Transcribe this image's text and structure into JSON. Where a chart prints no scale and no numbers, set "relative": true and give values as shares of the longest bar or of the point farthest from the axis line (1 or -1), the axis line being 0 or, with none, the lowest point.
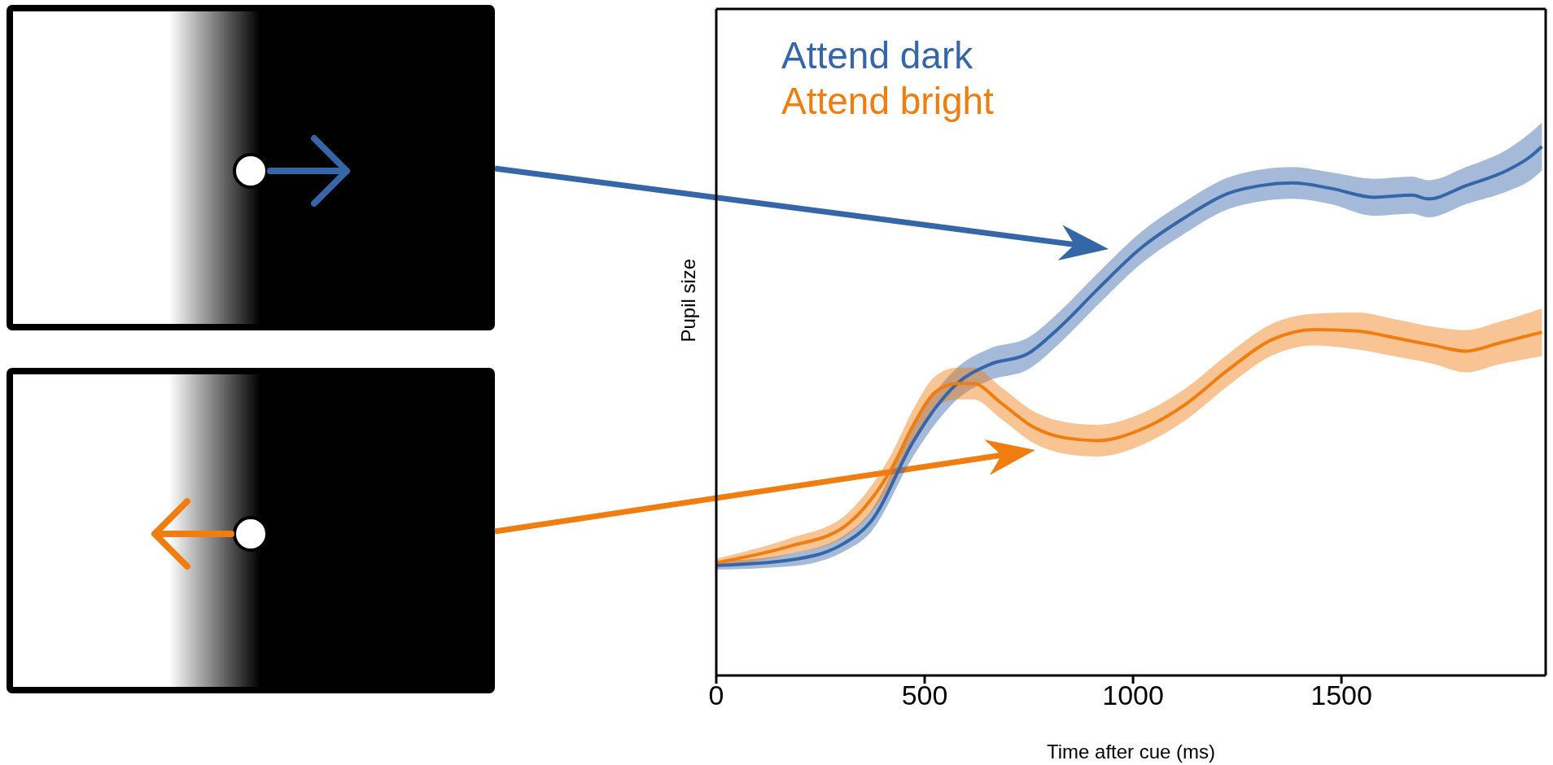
{
  "chart_data": {
    "type": "line",
    "relative": true,
    "xlabel": "Time after cue (ms)",
    "ylabel": "Pupil size",
    "xlim": [
      0,
      1990
    ],
    "xticks": [
      0,
      500,
      1000,
      1500
    ],
    "legend": "top left",
    "marker": "none",
    "line_style": "solid",
    "grid": false,
    "series": [
      {
        "name": "Attend dark",
        "color": "#3566a8",
        "x": [
          0,
          175,
          305,
          370,
          474,
          526,
          578,
          656,
          747,
          825,
          916,
          1019,
          1123,
          1227,
          1305,
          1383,
          1474,
          1578,
          1669,
          1708,
          1799,
          1903,
          1955,
          1981
        ],
        "values": [
          0.208,
          0.218,
          0.249,
          0.29,
          0.444,
          0.506,
          0.552,
          0.588,
          0.608,
          0.659,
          0.731,
          0.808,
          0.865,
          0.911,
          0.926,
          0.931,
          0.921,
          0.904,
          0.908,
          0.901,
          0.926,
          0.957,
          0.982,
          1.0
        ],
        "lower": [
          0.2,
          0.206,
          0.234,
          0.27,
          0.416,
          0.476,
          0.522,
          0.558,
          0.578,
          0.629,
          0.701,
          0.778,
          0.835,
          0.881,
          0.896,
          0.901,
          0.891,
          0.869,
          0.873,
          0.866,
          0.891,
          0.917,
          0.937,
          0.955
        ],
        "upper": [
          0.216,
          0.23,
          0.264,
          0.31,
          0.472,
          0.536,
          0.582,
          0.618,
          0.638,
          0.689,
          0.761,
          0.838,
          0.895,
          0.941,
          0.956,
          0.961,
          0.951,
          0.939,
          0.943,
          0.936,
          0.961,
          0.997,
          1.027,
          1.045
        ]
      },
      {
        "name": "Attend bright",
        "color": "#f07d10",
        "x": [
          0,
          175,
          305,
          370,
          422,
          474,
          526,
          578,
          617,
          682,
          760,
          838,
          916,
          1019,
          1123,
          1227,
          1331,
          1435,
          1539,
          1630,
          1721,
          1799,
          1877,
          1981
        ],
        "values": [
          0.213,
          0.244,
          0.28,
          0.331,
          0.393,
          0.475,
          0.536,
          0.552,
          0.552,
          0.516,
          0.47,
          0.449,
          0.444,
          0.465,
          0.511,
          0.577,
          0.634,
          0.654,
          0.651,
          0.638,
          0.624,
          0.613,
          0.628,
          0.649
        ],
        "lower": [
          0.205,
          0.229,
          0.26,
          0.306,
          0.365,
          0.445,
          0.506,
          0.522,
          0.522,
          0.486,
          0.44,
          0.419,
          0.414,
          0.435,
          0.481,
          0.547,
          0.604,
          0.624,
          0.616,
          0.603,
          0.589,
          0.573,
          0.588,
          0.604
        ],
        "upper": [
          0.221,
          0.259,
          0.3,
          0.356,
          0.421,
          0.505,
          0.566,
          0.582,
          0.582,
          0.546,
          0.5,
          0.479,
          0.474,
          0.495,
          0.541,
          0.607,
          0.664,
          0.684,
          0.686,
          0.673,
          0.659,
          0.653,
          0.668,
          0.694
        ]
      }
    ]
  }
}
